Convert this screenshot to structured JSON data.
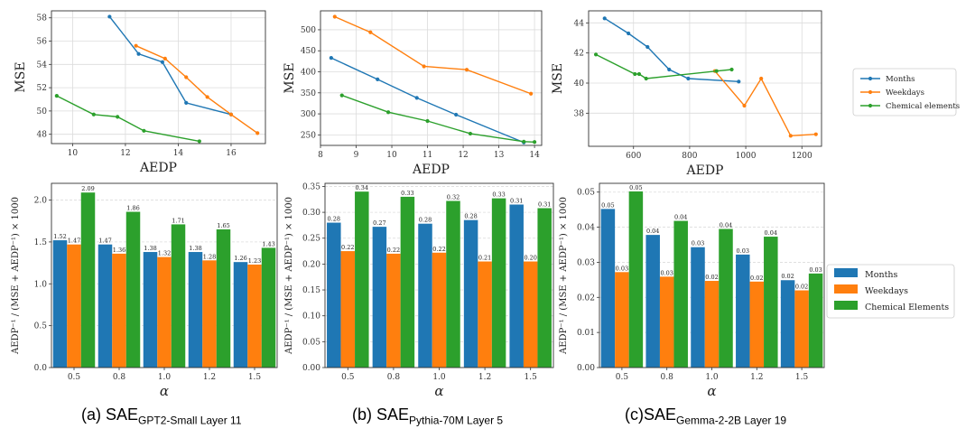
{
  "colors": {
    "months": "#1f77b4",
    "weekdays": "#ff7f0e",
    "chemical": "#2ca02c",
    "grid": "#dcdcdc"
  },
  "legends": {
    "line": [
      "Months",
      "Weekdays",
      "Chemical elements"
    ],
    "bar": [
      "Months",
      "Weekdays",
      "Chemical Elements"
    ]
  },
  "captions": [
    {
      "prefix": "(a) SAE",
      "sub": "GPT2-Small Layer 11"
    },
    {
      "prefix": "(b) SAE",
      "sub": "Pythia-70M Layer 5"
    },
    {
      "prefix": "(c)SAE",
      "sub": "Gemma-2-2B Layer 19"
    }
  ],
  "chart_data": [
    {
      "type": "line",
      "panel": "a-top",
      "xlabel": "AEDP",
      "ylabel": "MSE",
      "xlim": [
        9.2,
        17.3
      ],
      "ylim": [
        47.2,
        58.6
      ],
      "xticks": [
        10,
        12,
        14,
        16
      ],
      "yticks": [
        48,
        50,
        52,
        54,
        56,
        58
      ],
      "series": [
        {
          "name": "Months",
          "x": [
            11.4,
            12.5,
            13.4,
            14.3,
            16.0
          ],
          "y": [
            58.1,
            54.9,
            54.2,
            50.7,
            49.7
          ]
        },
        {
          "name": "Weekdays",
          "x": [
            12.4,
            13.5,
            14.3,
            15.1,
            16.0,
            17.0
          ],
          "y": [
            55.6,
            54.5,
            52.9,
            51.2,
            49.7,
            48.1
          ]
        },
        {
          "name": "Chemical elements",
          "x": [
            9.4,
            10.8,
            11.7,
            12.7,
            14.8
          ],
          "y": [
            51.3,
            49.7,
            49.5,
            48.3,
            47.4
          ]
        }
      ]
    },
    {
      "type": "line",
      "panel": "b-top",
      "xlabel": "AEDP",
      "ylabel": "MSE",
      "xlim": [
        8.0,
        14.2
      ],
      "ylim": [
        225,
        545
      ],
      "xticks": [
        8,
        9,
        10,
        11,
        12,
        13,
        14
      ],
      "yticks": [
        250,
        300,
        350,
        400,
        450,
        500
      ],
      "series": [
        {
          "name": "Months",
          "x": [
            8.3,
            9.6,
            10.7,
            11.8,
            13.7
          ],
          "y": [
            433,
            382,
            338,
            298,
            232
          ]
        },
        {
          "name": "Weekdays",
          "x": [
            8.4,
            9.4,
            10.9,
            12.1,
            13.9
          ],
          "y": [
            531,
            494,
            413,
            405,
            348
          ]
        },
        {
          "name": "Chemical elements",
          "x": [
            8.6,
            9.9,
            11.0,
            12.2,
            13.7,
            14.0
          ],
          "y": [
            344,
            304,
            283,
            253,
            234,
            233
          ]
        }
      ]
    },
    {
      "type": "line",
      "panel": "c-top",
      "xlabel": "AEDP",
      "ylabel": "MSE",
      "xlim": [
        440,
        1270
      ],
      "ylim": [
        35.8,
        44.8
      ],
      "xticks": [
        600,
        800,
        1000,
        1200
      ],
      "yticks": [
        38,
        40,
        42,
        44
      ],
      "series": [
        {
          "name": "Months",
          "x": [
            497,
            582,
            650,
            727,
            795,
            975
          ],
          "y": [
            44.3,
            43.3,
            42.4,
            40.9,
            40.3,
            40.1
          ]
        },
        {
          "name": "Weekdays",
          "x": [
            890,
            995,
            1055,
            1160,
            1250
          ],
          "y": [
            40.8,
            38.5,
            40.3,
            36.5,
            36.6
          ]
        },
        {
          "name": "Chemical elements",
          "x": [
            466,
            605,
            620,
            645,
            896,
            950
          ],
          "y": [
            41.9,
            40.6,
            40.6,
            40.3,
            40.8,
            40.9
          ]
        }
      ]
    },
    {
      "type": "bar",
      "panel": "a-bottom",
      "xlabel": "α",
      "ylabel": "AEDP⁻¹ / (MSE + AEDP⁻¹) × 1000",
      "categories": [
        "0.5",
        "0.8",
        "1.0",
        "1.2",
        "1.5"
      ],
      "ylim": [
        0,
        2.2
      ],
      "yticks": [
        0.0,
        0.5,
        1.0,
        1.5,
        2.0
      ],
      "tickfmt": 1,
      "series": [
        {
          "name": "Months",
          "values": [
            1.52,
            1.47,
            1.38,
            1.38,
            1.26
          ]
        },
        {
          "name": "Weekdays",
          "values": [
            1.47,
            1.36,
            1.32,
            1.28,
            1.23
          ]
        },
        {
          "name": "Chemical Elements",
          "values": [
            2.09,
            1.86,
            1.71,
            1.65,
            1.43
          ]
        }
      ],
      "labels": [
        [
          "1.52",
          "1.47",
          "1.38",
          "1.38",
          "1.26"
        ],
        [
          "1.47",
          "1.36",
          "1.32",
          "1.28",
          "1.23"
        ],
        [
          "2.09",
          "1.86",
          "1.71",
          "1.65",
          "1.43"
        ]
      ]
    },
    {
      "type": "bar",
      "panel": "b-bottom",
      "xlabel": "α",
      "ylabel": "AEDP⁻¹ / (MSE + AEDP⁻¹) × 1000",
      "categories": [
        "0.5",
        "0.8",
        "1.0",
        "1.2",
        "1.5"
      ],
      "ylim": [
        0,
        0.356
      ],
      "yticks": [
        0.0,
        0.05,
        0.1,
        0.15,
        0.2,
        0.25,
        0.3,
        0.35
      ],
      "tickfmt": 2,
      "series": [
        {
          "name": "Months",
          "values": [
            0.28,
            0.272,
            0.278,
            0.285,
            0.315
          ]
        },
        {
          "name": "Weekdays",
          "values": [
            0.225,
            0.22,
            0.222,
            0.205,
            0.205
          ]
        },
        {
          "name": "Chemical Elements",
          "values": [
            0.34,
            0.33,
            0.322,
            0.327,
            0.308
          ]
        }
      ],
      "labels": [
        [
          "0.28",
          "0.27",
          "0.28",
          "0.28",
          "0.31"
        ],
        [
          "0.22",
          "0.22",
          "0.22",
          "0.21",
          "0.20"
        ],
        [
          "0.34",
          "0.33",
          "0.32",
          "0.33",
          "0.31"
        ]
      ]
    },
    {
      "type": "bar",
      "panel": "c-bottom",
      "xlabel": "α",
      "ylabel": "AEDP⁻¹ / (MSE + AEDP⁻¹) × 1000",
      "categories": [
        "0.5",
        "0.8",
        "1.0",
        "1.2",
        "1.5"
      ],
      "ylim": [
        0,
        0.0525
      ],
      "yticks": [
        0.0,
        0.01,
        0.02,
        0.03,
        0.04,
        0.05
      ],
      "tickfmt": 2,
      "series": [
        {
          "name": "Months",
          "values": [
            0.0452,
            0.0378,
            0.0343,
            0.0322,
            0.0249
          ]
        },
        {
          "name": "Weekdays",
          "values": [
            0.0272,
            0.0259,
            0.0247,
            0.0245,
            0.022
          ]
        },
        {
          "name": "Chemical Elements",
          "values": [
            0.0502,
            0.0418,
            0.0395,
            0.0373,
            0.0268
          ]
        }
      ],
      "labels": [
        [
          "0.05",
          "0.04",
          "0.03",
          "0.03",
          "0.02"
        ],
        [
          "0.03",
          "0.03",
          "0.02",
          "0.02",
          "0.02"
        ],
        [
          "0.05",
          "0.04",
          "0.04",
          "0.04",
          "0.03"
        ]
      ]
    }
  ]
}
